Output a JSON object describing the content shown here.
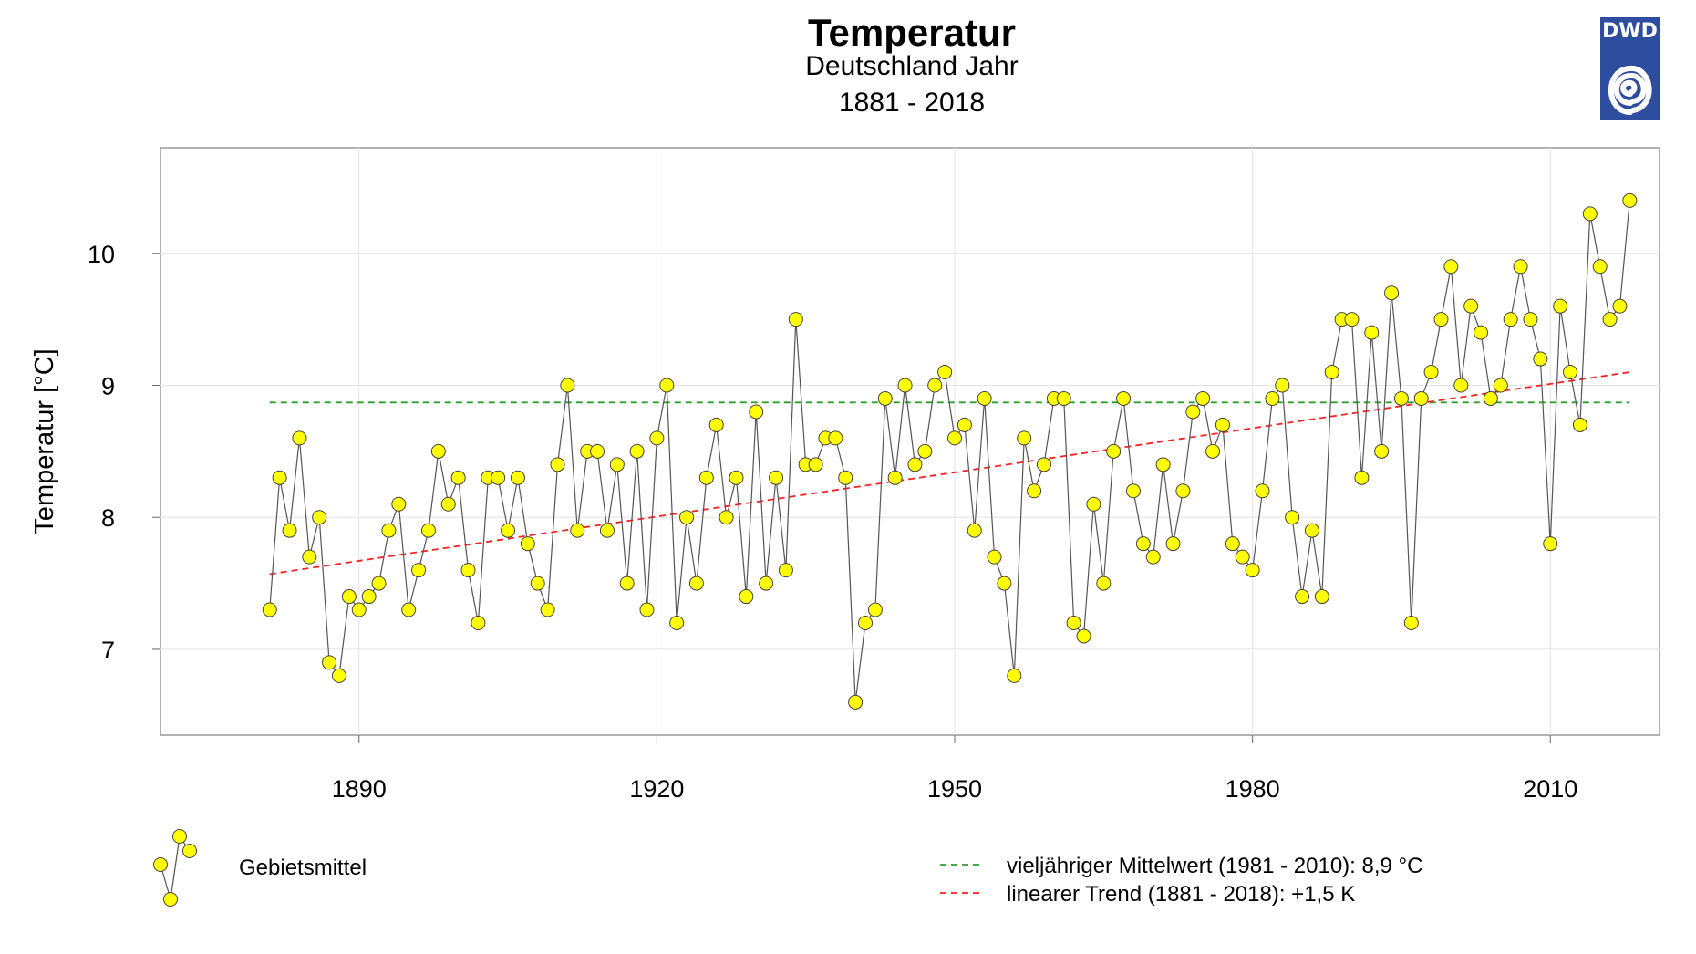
{
  "title": "Temperatur",
  "subtitle1": "Deutschland Jahr",
  "subtitle2": "1881 - 2018",
  "logo": {
    "text": "DWD",
    "color": "#2e4d9e"
  },
  "legend": {
    "series_label": "Gebietsmittel",
    "mean_label": "vieljähriger Mittelwert (1981 - 2010): 8,9 °C",
    "trend_label": "linearer Trend (1881 - 2018): +1,5 K"
  },
  "colors": {
    "points": "#ffff00",
    "line": "#555555",
    "mean": "#2ca02c",
    "trend": "#ff2020"
  },
  "chart_data": {
    "type": "line",
    "title": "Temperatur",
    "subtitle": "Deutschland Jahr 1881 - 2018",
    "ylabel": "Temperatur [°C]",
    "xlabel": "",
    "xlim": [
      1870,
      2021
    ],
    "ylim": [
      6.35,
      10.8
    ],
    "xticks": [
      1890,
      1920,
      1950,
      1980,
      2010
    ],
    "yticks": [
      7,
      8,
      9,
      10
    ],
    "grid": true,
    "years": [
      1881,
      1882,
      1883,
      1884,
      1885,
      1886,
      1887,
      1888,
      1889,
      1890,
      1891,
      1892,
      1893,
      1894,
      1895,
      1896,
      1897,
      1898,
      1899,
      1900,
      1901,
      1902,
      1903,
      1904,
      1905,
      1906,
      1907,
      1908,
      1909,
      1910,
      1911,
      1912,
      1913,
      1914,
      1915,
      1916,
      1917,
      1918,
      1919,
      1920,
      1921,
      1922,
      1923,
      1924,
      1925,
      1926,
      1927,
      1928,
      1929,
      1930,
      1931,
      1932,
      1933,
      1934,
      1935,
      1936,
      1937,
      1938,
      1939,
      1940,
      1941,
      1942,
      1943,
      1944,
      1945,
      1946,
      1947,
      1948,
      1949,
      1950,
      1951,
      1952,
      1953,
      1954,
      1955,
      1956,
      1957,
      1958,
      1959,
      1960,
      1961,
      1962,
      1963,
      1964,
      1965,
      1966,
      1967,
      1968,
      1969,
      1970,
      1971,
      1972,
      1973,
      1974,
      1975,
      1976,
      1977,
      1978,
      1979,
      1980,
      1981,
      1982,
      1983,
      1984,
      1985,
      1986,
      1987,
      1988,
      1989,
      1990,
      1991,
      1992,
      1993,
      1994,
      1995,
      1996,
      1997,
      1998,
      1999,
      2000,
      2001,
      2002,
      2003,
      2004,
      2005,
      2006,
      2007,
      2008,
      2009,
      2010,
      2011,
      2012,
      2013,
      2014,
      2015,
      2016,
      2017,
      2018
    ],
    "series": [
      {
        "name": "Gebietsmittel",
        "values": [
          7.3,
          8.3,
          7.9,
          8.6,
          7.7,
          8.0,
          6.9,
          6.8,
          7.4,
          7.3,
          7.4,
          7.5,
          7.9,
          8.1,
          7.3,
          7.6,
          7.9,
          8.5,
          8.1,
          8.3,
          7.6,
          7.2,
          8.3,
          8.3,
          7.9,
          8.3,
          7.8,
          7.5,
          7.3,
          8.4,
          9.0,
          7.9,
          8.5,
          8.5,
          7.9,
          8.4,
          7.5,
          8.5,
          7.3,
          8.6,
          9.0,
          7.2,
          8.0,
          7.5,
          8.3,
          8.7,
          8.0,
          8.3,
          7.4,
          8.8,
          7.5,
          8.3,
          7.6,
          9.5,
          8.4,
          8.4,
          8.6,
          8.6,
          8.3,
          6.6,
          7.2,
          7.3,
          8.9,
          8.3,
          9.0,
          8.4,
          8.5,
          9.0,
          9.1,
          8.6,
          8.7,
          7.9,
          8.9,
          7.7,
          7.5,
          6.8,
          8.6,
          8.2,
          8.4,
          8.9,
          8.9,
          7.2,
          7.1,
          8.1,
          7.5,
          8.5,
          8.9,
          8.2,
          7.8,
          7.7,
          8.4,
          7.8,
          8.2,
          8.8,
          8.9,
          8.5,
          8.7,
          7.8,
          7.7,
          7.6,
          8.2,
          8.9,
          9.0,
          8.0,
          7.4,
          7.9,
          7.4,
          9.1,
          9.5,
          9.5,
          8.3,
          9.4,
          8.5,
          9.7,
          8.9,
          7.2,
          8.9,
          9.1,
          9.5,
          9.9,
          9.0,
          9.6,
          9.4,
          8.9,
          9.0,
          9.5,
          9.9,
          9.5,
          9.2,
          7.8,
          9.6,
          9.1,
          8.7,
          10.3,
          9.9,
          9.5,
          9.6,
          10.4
        ]
      },
      {
        "name": "vieljähriger Mittelwert (1981 - 2010)",
        "value": 8.87,
        "x_range": [
          1881,
          2018
        ]
      },
      {
        "name": "linearer Trend (1881 - 2018)",
        "start": 7.57,
        "end": 9.1,
        "x_range": [
          1881,
          2018
        ]
      }
    ]
  }
}
